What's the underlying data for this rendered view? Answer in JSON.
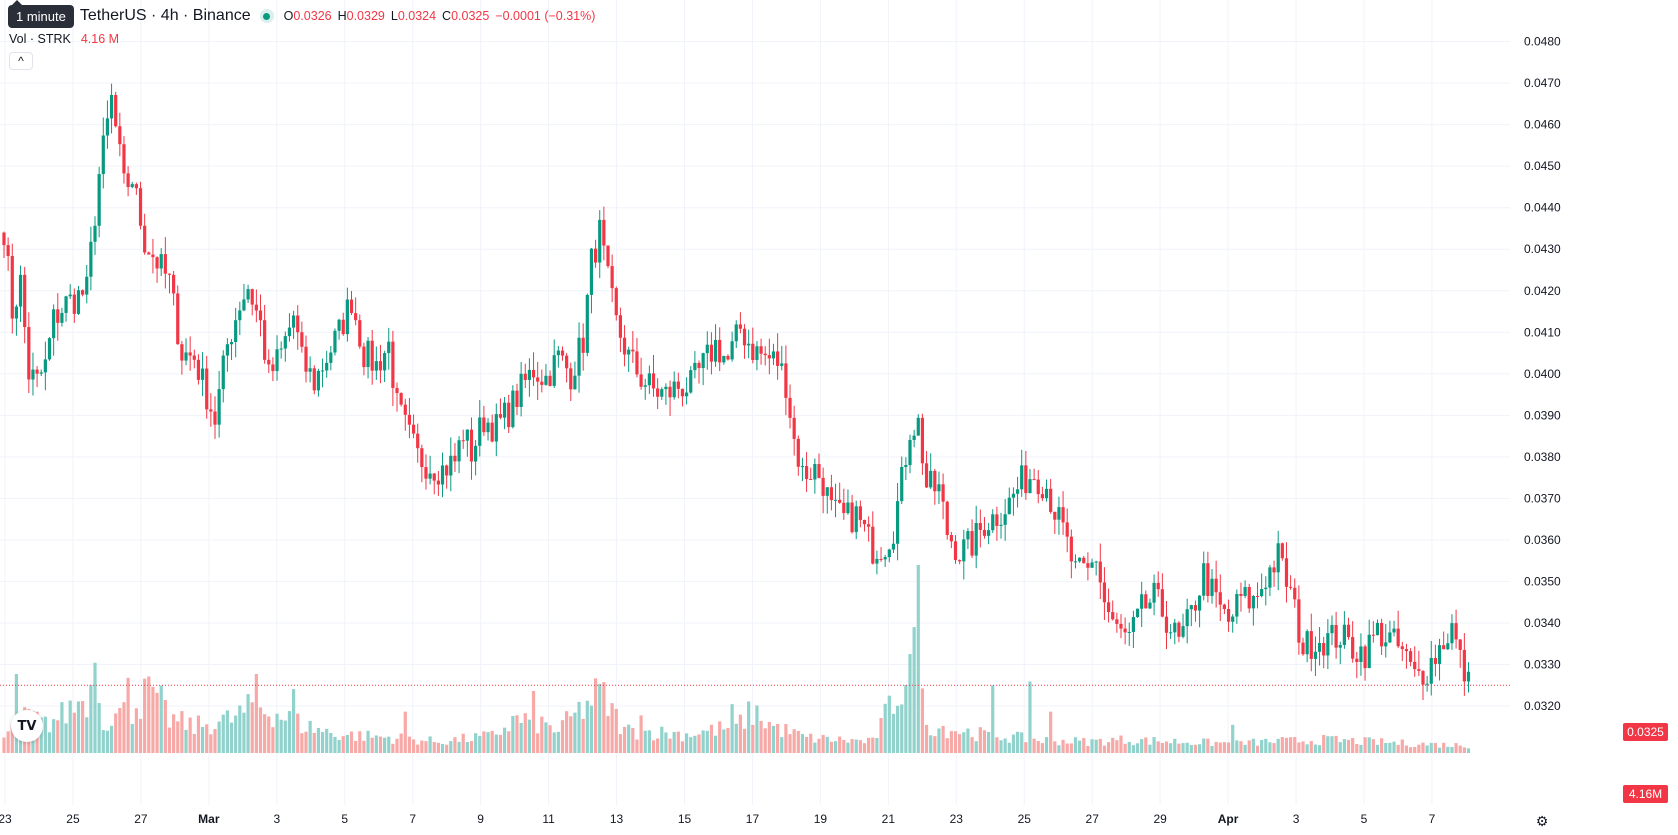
{
  "legend": {
    "tooltip": "1 minute",
    "symbol_title": "TetherUS · 4h · Binance",
    "o_label": "O",
    "o_value": "0.0326",
    "h_label": "H",
    "h_value": "0.0329",
    "l_label": "L",
    "l_value": "0.0324",
    "c_label": "C",
    "c_value": "0.0325",
    "change": "−0.0001 (−0.31%)",
    "vol_label": "Vol · STRK",
    "vol_value": "4.16 M"
  },
  "colors": {
    "up": "#089981",
    "down": "#f23645",
    "up_vol": "#92d2cc",
    "down_vol": "#f7a9a7",
    "grid": "#f0f3fa",
    "axis_text": "#131722"
  },
  "icons": {
    "collapse": "chevron-up-icon",
    "logo": "tradingview-logo",
    "settings": "gear-icon"
  },
  "chart_data": {
    "type": "candlestick",
    "symbol": "TetherUS",
    "interval": "4h",
    "exchange": "Binance",
    "y_axis": {
      "ticks": [
        "0.0480",
        "0.0470",
        "0.0460",
        "0.0450",
        "0.0440",
        "0.0430",
        "0.0420",
        "0.0410",
        "0.0400",
        "0.0390",
        "0.0380",
        "0.0370",
        "0.0360",
        "0.0350",
        "0.0340",
        "0.0330",
        "0.0320"
      ],
      "ylim": [
        0.03135,
        0.0484
      ]
    },
    "x_axis": {
      "labels": [
        "23",
        "25",
        "27",
        "Mar",
        "3",
        "5",
        "7",
        "9",
        "11",
        "13",
        "15",
        "17",
        "19",
        "21",
        "23",
        "25",
        "27",
        "29",
        "Apr",
        "3",
        "5",
        "7"
      ]
    },
    "last_price": "0.0325",
    "last_volume": "4.16M",
    "grid": true,
    "anchors": [
      [
        0,
        0.0435
      ],
      [
        2,
        0.0415
      ],
      [
        4,
        0.0422
      ],
      [
        6,
        0.04
      ],
      [
        8,
        0.0398
      ],
      [
        10,
        0.0402
      ],
      [
        12,
        0.0413
      ],
      [
        15,
        0.0417
      ],
      [
        17,
        0.0418
      ],
      [
        20,
        0.042
      ],
      [
        23,
        0.0448
      ],
      [
        26,
        0.0466
      ],
      [
        29,
        0.0445
      ],
      [
        31,
        0.0447
      ],
      [
        34,
        0.0432
      ],
      [
        37,
        0.0427
      ],
      [
        40,
        0.0422
      ],
      [
        43,
        0.0405
      ],
      [
        46,
        0.0404
      ],
      [
        49,
        0.0395
      ],
      [
        51,
        0.0389
      ],
      [
        54,
        0.0407
      ],
      [
        57,
        0.0417
      ],
      [
        59,
        0.0421
      ],
      [
        62,
        0.0412
      ],
      [
        64,
        0.0399
      ],
      [
        67,
        0.0405
      ],
      [
        70,
        0.0414
      ],
      [
        72,
        0.0403
      ],
      [
        75,
        0.0398
      ],
      [
        78,
        0.0404
      ],
      [
        81,
        0.041
      ],
      [
        84,
        0.0418
      ],
      [
        87,
        0.0405
      ],
      [
        90,
        0.0402
      ],
      [
        93,
        0.0407
      ],
      [
        95,
        0.0392
      ],
      [
        97,
        0.0387
      ],
      [
        100,
        0.038
      ],
      [
        103,
        0.0378
      ],
      [
        106,
        0.0377
      ],
      [
        109,
        0.0379
      ],
      [
        111,
        0.0386
      ],
      [
        113,
        0.0381
      ],
      [
        116,
        0.0389
      ],
      [
        119,
        0.0387
      ],
      [
        122,
        0.0391
      ],
      [
        126,
        0.0398
      ],
      [
        128,
        0.0401
      ],
      [
        131,
        0.0399
      ],
      [
        134,
        0.0404
      ],
      [
        137,
        0.04
      ],
      [
        140,
        0.0408
      ],
      [
        142,
        0.0427
      ],
      [
        144,
        0.0434
      ],
      [
        146,
        0.0422
      ],
      [
        148,
        0.0412
      ],
      [
        151,
        0.0404
      ],
      [
        154,
        0.0399
      ],
      [
        157,
        0.0396
      ],
      [
        160,
        0.0395
      ],
      [
        163,
        0.0397
      ],
      [
        166,
        0.0397
      ],
      [
        169,
        0.0402
      ],
      [
        172,
        0.0407
      ],
      [
        175,
        0.0403
      ],
      [
        178,
        0.0411
      ],
      [
        181,
        0.0406
      ],
      [
        184,
        0.0404
      ],
      [
        187,
        0.0403
      ],
      [
        189,
        0.0398
      ],
      [
        191,
        0.0384
      ],
      [
        193,
        0.0376
      ],
      [
        196,
        0.0377
      ],
      [
        198,
        0.0374
      ],
      [
        200,
        0.0367
      ],
      [
        203,
        0.0365
      ],
      [
        206,
        0.0366
      ],
      [
        208,
        0.0362
      ],
      [
        210,
        0.0358
      ],
      [
        213,
        0.0359
      ],
      [
        215,
        0.0363
      ],
      [
        217,
        0.0374
      ],
      [
        219,
        0.0387
      ],
      [
        221,
        0.0388
      ],
      [
        223,
        0.0373
      ],
      [
        226,
        0.0372
      ],
      [
        228,
        0.0362
      ],
      [
        231,
        0.0357
      ],
      [
        234,
        0.0359
      ],
      [
        237,
        0.0364
      ],
      [
        240,
        0.0366
      ],
      [
        243,
        0.0369
      ],
      [
        246,
        0.0374
      ],
      [
        249,
        0.0376
      ],
      [
        252,
        0.0373
      ],
      [
        254,
        0.0367
      ],
      [
        256,
        0.0362
      ],
      [
        259,
        0.0352
      ],
      [
        262,
        0.0352
      ],
      [
        264,
        0.0356
      ],
      [
        266,
        0.0345
      ],
      [
        269,
        0.0338
      ],
      [
        272,
        0.0336
      ],
      [
        275,
        0.0343
      ],
      [
        278,
        0.0346
      ],
      [
        281,
        0.0341
      ],
      [
        284,
        0.0335
      ],
      [
        287,
        0.0342
      ],
      [
        290,
        0.0352
      ],
      [
        293,
        0.0345
      ],
      [
        296,
        0.034
      ],
      [
        299,
        0.0346
      ],
      [
        302,
        0.0345
      ],
      [
        305,
        0.0351
      ],
      [
        308,
        0.0356
      ],
      [
        311,
        0.0347
      ],
      [
        314,
        0.0334
      ],
      [
        317,
        0.0336
      ],
      [
        320,
        0.0336
      ],
      [
        323,
        0.0337
      ],
      [
        326,
        0.0334
      ],
      [
        329,
        0.0333
      ],
      [
        332,
        0.0338
      ],
      [
        335,
        0.0336
      ],
      [
        338,
        0.0333
      ],
      [
        341,
        0.0327
      ],
      [
        344,
        0.0329
      ],
      [
        347,
        0.0334
      ],
      [
        350,
        0.0339
      ],
      [
        352,
        0.0331
      ],
      [
        354,
        0.0325
      ]
    ],
    "volume_anchors": [
      [
        0,
        0.08
      ],
      [
        6,
        0.2
      ],
      [
        10,
        0.15
      ],
      [
        14,
        0.2
      ],
      [
        21,
        0.32
      ],
      [
        22,
        0.37
      ],
      [
        24,
        0.18
      ],
      [
        30,
        0.22
      ],
      [
        36,
        0.34
      ],
      [
        40,
        0.18
      ],
      [
        46,
        0.14
      ],
      [
        55,
        0.18
      ],
      [
        61,
        0.25
      ],
      [
        65,
        0.22
      ],
      [
        72,
        0.15
      ],
      [
        80,
        0.1
      ],
      [
        95,
        0.08
      ],
      [
        105,
        0.06
      ],
      [
        118,
        0.09
      ],
      [
        124,
        0.18
      ],
      [
        129,
        0.16
      ],
      [
        134,
        0.12
      ],
      [
        144,
        0.32
      ],
      [
        150,
        0.12
      ],
      [
        165,
        0.1
      ],
      [
        177,
        0.14
      ],
      [
        181,
        0.22
      ],
      [
        186,
        0.14
      ],
      [
        194,
        0.08
      ],
      [
        210,
        0.06
      ],
      [
        220,
        0.5
      ],
      [
        223,
        0.15
      ],
      [
        236,
        0.1
      ],
      [
        250,
        0.07
      ],
      [
        262,
        0.06
      ],
      [
        270,
        0.07
      ],
      [
        285,
        0.06
      ],
      [
        298,
        0.05
      ],
      [
        305,
        0.06
      ],
      [
        320,
        0.07
      ],
      [
        340,
        0.05
      ],
      [
        354,
        0.04
      ]
    ],
    "volume_spikes": [
      [
        3,
        0.42
      ],
      [
        22,
        0.48
      ],
      [
        30,
        0.4
      ],
      [
        37,
        0.32
      ],
      [
        61,
        0.42
      ],
      [
        70,
        0.34
      ],
      [
        97,
        0.22
      ],
      [
        128,
        0.33
      ],
      [
        154,
        0.2
      ],
      [
        176,
        0.26
      ],
      [
        221,
        1.0
      ],
      [
        239,
        0.36
      ],
      [
        248,
        0.38
      ],
      [
        253,
        0.22
      ],
      [
        297,
        0.15
      ]
    ]
  }
}
